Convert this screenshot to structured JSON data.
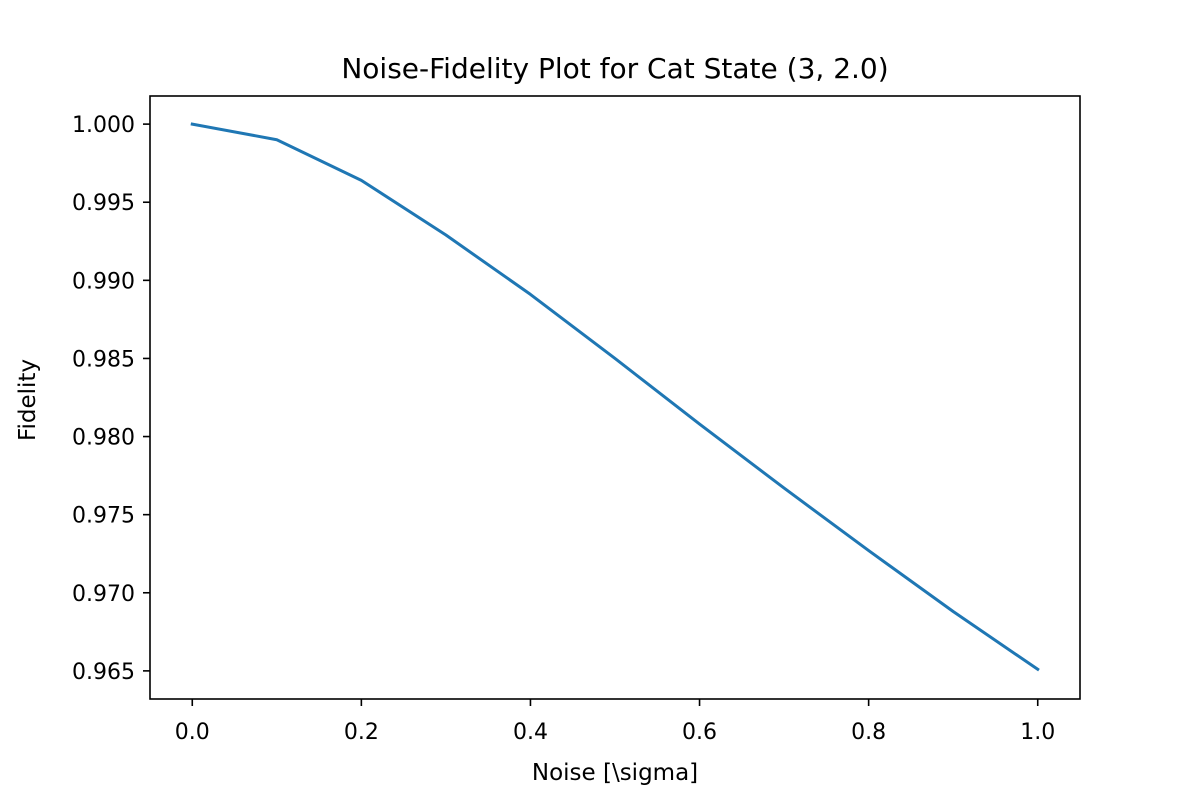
{
  "chart_data": {
    "type": "line",
    "title": "Noise-Fidelity Plot for Cat State (3, 2.0)",
    "xlabel": "Noise [\\sigma]",
    "ylabel": "Fidelity",
    "xlim": [
      -0.05,
      1.05
    ],
    "ylim": [
      0.9632,
      1.0018
    ],
    "xticks": [
      0.0,
      0.2,
      0.4,
      0.6,
      0.8,
      1.0
    ],
    "xtick_labels": [
      "0.0",
      "0.2",
      "0.4",
      "0.6",
      "0.8",
      "1.0"
    ],
    "yticks": [
      0.965,
      0.97,
      0.975,
      0.98,
      0.985,
      0.99,
      0.995,
      1.0
    ],
    "ytick_labels": [
      "0.965",
      "0.970",
      "0.975",
      "0.980",
      "0.985",
      "0.990",
      "0.995",
      "1.000"
    ],
    "grid": false,
    "legend": "none",
    "series": [
      {
        "color": "#1f77b4",
        "x": [
          0.0,
          0.1,
          0.2,
          0.3,
          0.4,
          0.5,
          0.6,
          0.7,
          0.8,
          0.9,
          1.0
        ],
        "y": [
          1.0,
          0.999,
          0.9964,
          0.9929,
          0.9891,
          0.985,
          0.9808,
          0.9767,
          0.9727,
          0.9688,
          0.9651
        ]
      }
    ]
  }
}
